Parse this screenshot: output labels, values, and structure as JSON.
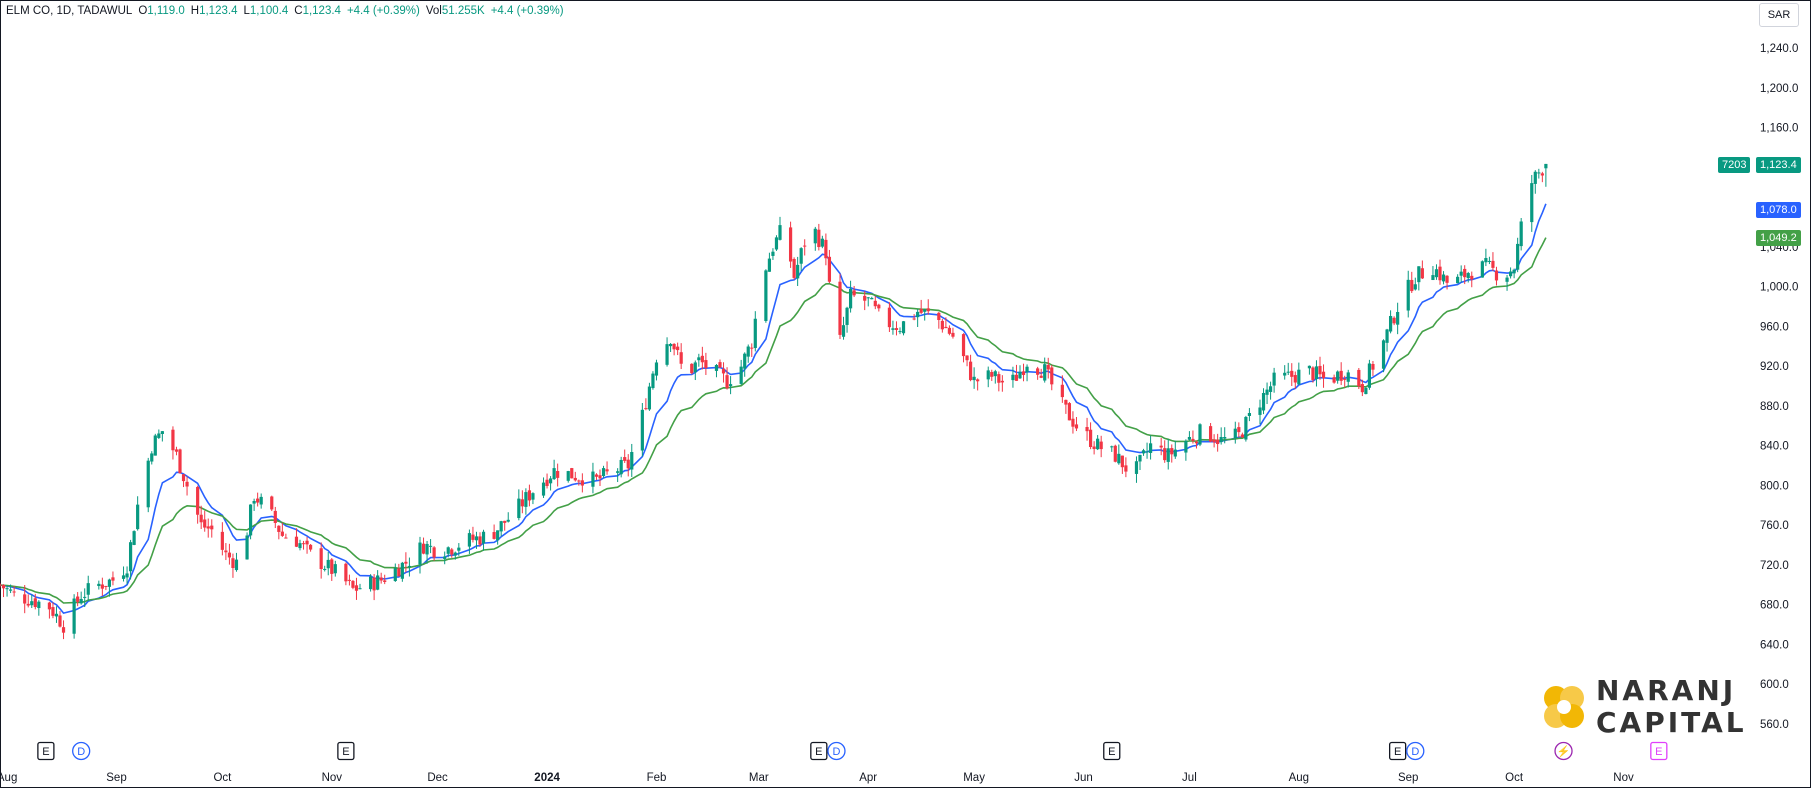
{
  "header": {
    "symbol": "ELM CO, 1D, TADAWUL",
    "open_label": "O",
    "open": "1,119.0",
    "high_label": "H",
    "high": "1,123.4",
    "low_label": "L",
    "low": "1,100.4",
    "close_label": "C",
    "close": "1,123.4",
    "change": "+4.4 (+0.39%)",
    "volume_label": "Vol",
    "volume": "51.255K",
    "volume_change": "+4.4 (+0.39%)"
  },
  "currency_button": "SAR",
  "price_tags": {
    "symbol_code": "7203",
    "last_price": "1,123.4",
    "ma_fast": "1,078.0",
    "ma_slow": "1,049.2"
  },
  "colors": {
    "up": "#089981",
    "down": "#f23645",
    "ma_fast": "#2962ff",
    "ma_slow": "#43a047",
    "event_earnings": "#131722",
    "event_dividend": "#2962ff",
    "event_split": "#9c27b0",
    "logo_gold": "#f2b705"
  },
  "events": [
    {
      "type": "E",
      "month": "Aug"
    },
    {
      "type": "D",
      "month": "Aug"
    },
    {
      "type": "E",
      "month": "Nov"
    },
    {
      "type": "E",
      "month": "Mar"
    },
    {
      "type": "D",
      "month": "Mar"
    },
    {
      "type": "E",
      "month": "Jun"
    },
    {
      "type": "E",
      "month": "Aug"
    },
    {
      "type": "D",
      "month": "Aug"
    },
    {
      "type": "lightning",
      "month": "Oct"
    },
    {
      "type": "E",
      "month": "Nov"
    }
  ],
  "logo": {
    "line1": "NARANJ",
    "line2": "CAPITAL"
  },
  "chart_data": {
    "type": "candlestick",
    "title": "ELM CO, 1D, TADAWUL",
    "ylim": [
      540,
      1280
    ],
    "yticks": [
      "1,240.0",
      "1,200.0",
      "1,160.0",
      "1,040.0",
      "1,000.0",
      "960.0",
      "920.0",
      "880.0",
      "840.0",
      "800.0",
      "760.0",
      "720.0",
      "680.0",
      "640.0",
      "600.0",
      "560.0"
    ],
    "xticks": [
      "Aug",
      "Sep",
      "Oct",
      "Nov",
      "Dec",
      "2024",
      "Feb",
      "Mar",
      "Apr",
      "May",
      "Jun",
      "Jul",
      "Aug",
      "Sep",
      "Oct",
      "Nov"
    ],
    "x_start": "2023-07-30",
    "x_end": "2024-11-17",
    "close_series": [
      [
        "2023-07-30",
        700
      ],
      [
        "2023-08-03",
        690
      ],
      [
        "2023-08-08",
        685
      ],
      [
        "2023-08-13",
        678
      ],
      [
        "2023-08-17",
        660
      ],
      [
        "2023-08-22",
        690
      ],
      [
        "2023-08-27",
        700
      ],
      [
        "2023-08-31",
        705
      ],
      [
        "2023-09-04",
        720
      ],
      [
        "2023-09-07",
        780
      ],
      [
        "2023-09-11",
        840
      ],
      [
        "2023-09-14",
        855
      ],
      [
        "2023-09-18",
        830
      ],
      [
        "2023-09-21",
        800
      ],
      [
        "2023-09-25",
        760
      ],
      [
        "2023-09-28",
        755
      ],
      [
        "2023-10-02",
        730
      ],
      [
        "2023-10-06",
        720
      ],
      [
        "2023-10-10",
        790
      ],
      [
        "2023-10-14",
        775
      ],
      [
        "2023-10-18",
        750
      ],
      [
        "2023-10-22",
        745
      ],
      [
        "2023-10-26",
        730
      ],
      [
        "2023-10-30",
        720
      ],
      [
        "2023-11-03",
        710
      ],
      [
        "2023-11-07",
        695
      ],
      [
        "2023-11-11",
        700
      ],
      [
        "2023-11-15",
        705
      ],
      [
        "2023-11-19",
        715
      ],
      [
        "2023-11-23",
        725
      ],
      [
        "2023-11-27",
        740
      ],
      [
        "2023-12-01",
        735
      ],
      [
        "2023-12-05",
        738
      ],
      [
        "2023-12-10",
        745
      ],
      [
        "2023-12-16",
        750
      ],
      [
        "2023-12-22",
        770
      ],
      [
        "2023-12-28",
        795
      ],
      [
        "2024-01-03",
        815
      ],
      [
        "2024-01-09",
        810
      ],
      [
        "2024-01-15",
        805
      ],
      [
        "2024-01-20",
        815
      ],
      [
        "2024-01-24",
        820
      ],
      [
        "2024-01-28",
        870
      ],
      [
        "2024-02-01",
        930
      ],
      [
        "2024-02-05",
        950
      ],
      [
        "2024-02-09",
        910
      ],
      [
        "2024-02-13",
        925
      ],
      [
        "2024-02-17",
        915
      ],
      [
        "2024-02-21",
        905
      ],
      [
        "2024-02-25",
        920
      ],
      [
        "2024-02-28",
        945
      ],
      [
        "2024-03-02",
        1010
      ],
      [
        "2024-03-05",
        1040
      ],
      [
        "2024-03-08",
        1060
      ],
      [
        "2024-03-11",
        1010
      ],
      [
        "2024-03-14",
        1045
      ],
      [
        "2024-03-17",
        1055
      ],
      [
        "2024-03-20",
        1035
      ],
      [
        "2024-03-23",
        930
      ],
      [
        "2024-03-27",
        990
      ],
      [
        "2024-04-01",
        985
      ],
      [
        "2024-04-05",
        965
      ],
      [
        "2024-04-10",
        960
      ],
      [
        "2024-04-15",
        975
      ],
      [
        "2024-04-20",
        970
      ],
      [
        "2024-04-25",
        950
      ],
      [
        "2024-05-01",
        905
      ],
      [
        "2024-05-06",
        910
      ],
      [
        "2024-05-11",
        900
      ],
      [
        "2024-05-16",
        925
      ],
      [
        "2024-05-21",
        915
      ],
      [
        "2024-05-26",
        880
      ],
      [
        "2024-05-31",
        855
      ],
      [
        "2024-06-05",
        840
      ],
      [
        "2024-06-10",
        830
      ],
      [
        "2024-06-15",
        810
      ],
      [
        "2024-06-20",
        840
      ],
      [
        "2024-06-25",
        830
      ],
      [
        "2024-06-30",
        845
      ],
      [
        "2024-07-05",
        855
      ],
      [
        "2024-07-10",
        845
      ],
      [
        "2024-07-15",
        850
      ],
      [
        "2024-07-20",
        880
      ],
      [
        "2024-07-25",
        905
      ],
      [
        "2024-07-30",
        910
      ],
      [
        "2024-08-04",
        915
      ],
      [
        "2024-08-09",
        905
      ],
      [
        "2024-08-14",
        915
      ],
      [
        "2024-08-19",
        900
      ],
      [
        "2024-08-24",
        935
      ],
      [
        "2024-08-29",
        980
      ],
      [
        "2024-09-03",
        1010
      ],
      [
        "2024-09-08",
        1020
      ],
      [
        "2024-09-13",
        1000
      ],
      [
        "2024-09-18",
        1015
      ],
      [
        "2024-09-23",
        1020
      ],
      [
        "2024-09-28",
        1010
      ],
      [
        "2024-10-01",
        1020
      ],
      [
        "2024-10-04",
        1080
      ],
      [
        "2024-10-06",
        1105
      ],
      [
        "2024-10-08",
        1115
      ],
      [
        "2024-10-10",
        1123.4
      ]
    ],
    "ma_fast_last": 1078.0,
    "ma_slow_last": 1049.2,
    "last_price": 1123.4,
    "grid": false,
    "legend": "top-left"
  }
}
